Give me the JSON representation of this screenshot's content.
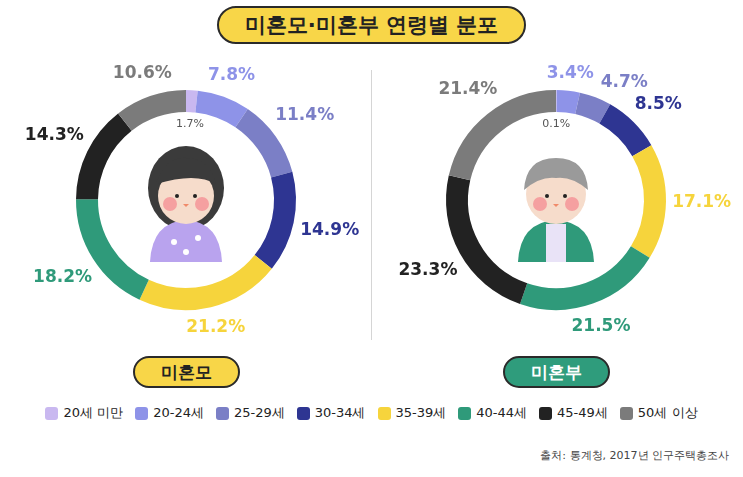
{
  "title": "미혼모·미혼부 연령별 분포",
  "source": "출처: 통계청, 2017년 인구주택총조사",
  "chart_data": [
    {
      "type": "doughnut",
      "title": "미혼모",
      "categories": [
        "20세 미만",
        "20-24세",
        "25-29세",
        "30-34세",
        "35-39세",
        "40-44세",
        "45-49세",
        "50세 이상"
      ],
      "values": [
        1.7,
        7.8,
        11.4,
        14.9,
        21.2,
        18.2,
        14.3,
        10.6
      ],
      "value_labels": [
        "1.7%",
        "7.8%",
        "11.4%",
        "14.9%",
        "21.2%",
        "18.2%",
        "14.3%",
        "10.6%"
      ],
      "colors": [
        "#c9b8f0",
        "#8e93e8",
        "#7b7fc6",
        "#2e3592",
        "#f6d43c",
        "#2f9a7a",
        "#222222",
        "#7b7b7b"
      ],
      "data_labels": true,
      "legend": "bottom"
    },
    {
      "type": "doughnut",
      "title": "미혼부",
      "categories": [
        "20세 미만",
        "20-24세",
        "25-29세",
        "30-34세",
        "35-39세",
        "40-44세",
        "45-49세",
        "50세 이상"
      ],
      "values": [
        0.1,
        3.4,
        4.7,
        8.5,
        17.1,
        21.5,
        23.3,
        21.4
      ],
      "value_labels": [
        "0.1%",
        "3.4%",
        "4.7%",
        "8.5%",
        "17.1%",
        "21.5%",
        "23.3%",
        "21.4%"
      ],
      "colors": [
        "#c9b8f0",
        "#8e93e8",
        "#7b7fc6",
        "#2e3592",
        "#f6d43c",
        "#2f9a7a",
        "#222222",
        "#7b7b7b"
      ],
      "data_labels": true,
      "legend": "bottom"
    }
  ]
}
